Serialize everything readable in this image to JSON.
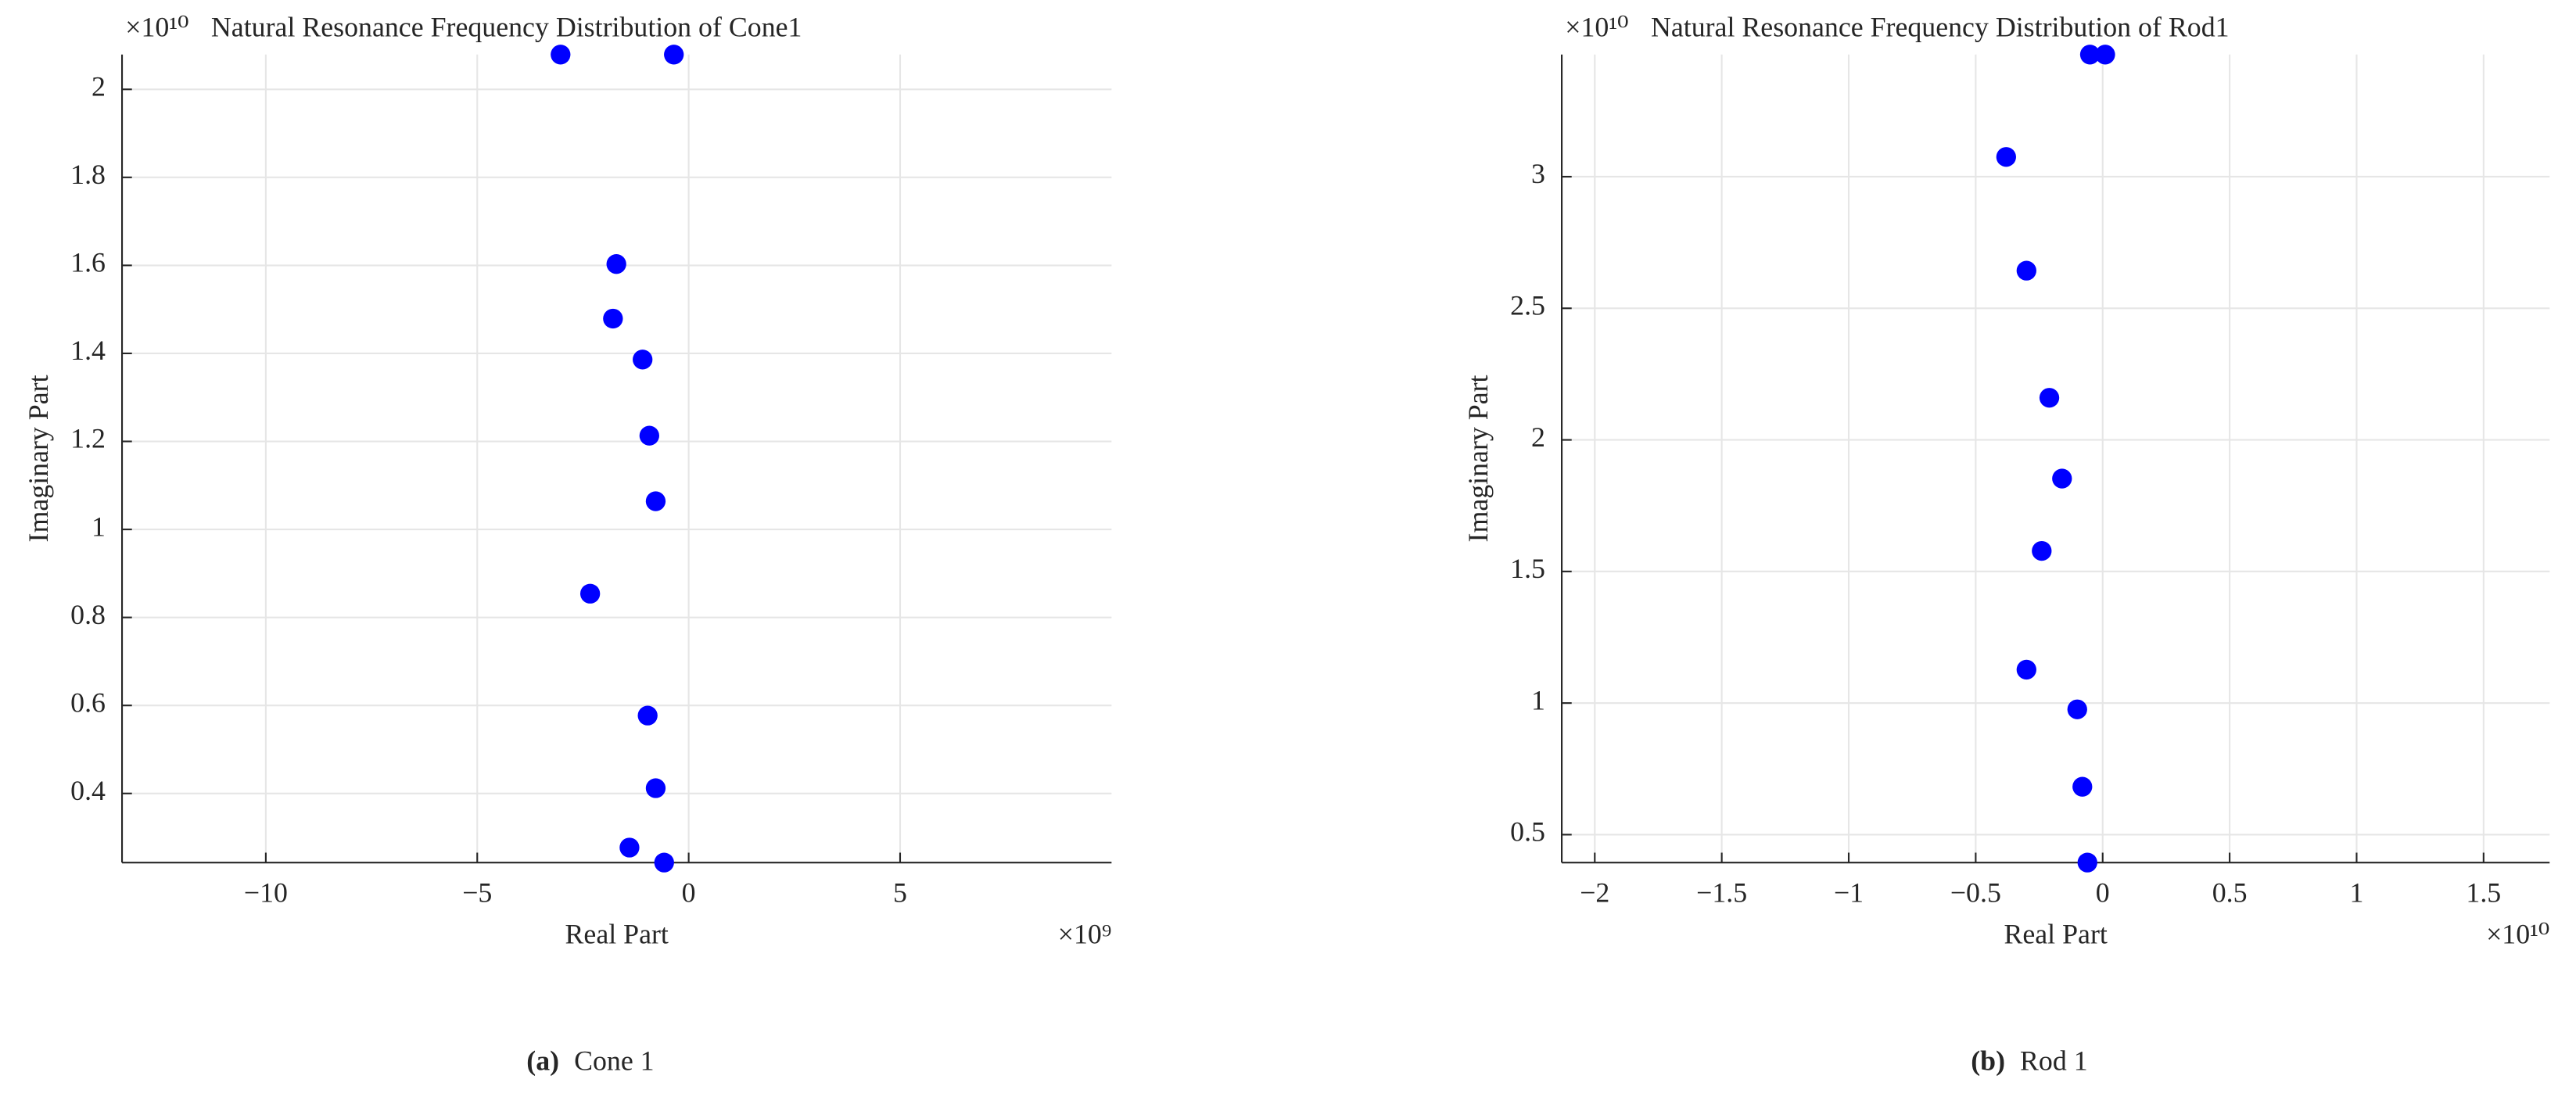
{
  "chart_data": [
    {
      "type": "scatter",
      "title": "Natural Resonance Frequency Distribution of Cone1",
      "xlabel": "Real Part",
      "ylabel": "Imaginary Part",
      "x_multiplier": "×10⁹",
      "y_multiplier": "×10¹⁰",
      "caption_label": "(a)",
      "caption": "Cone 1",
      "color": "#0000ff",
      "grid": true,
      "x": [
        -3.03,
        -0.35,
        -1.71,
        -1.79,
        -1.09,
        -0.93,
        -0.78,
        -2.33,
        -0.97,
        -0.78,
        -1.4,
        -0.58
      ],
      "values": [
        2.079,
        2.079,
        1.603,
        1.479,
        1.386,
        1.213,
        1.064,
        0.854,
        0.577,
        0.412,
        0.277,
        0.243
      ],
      "xlim": [
        -13.4,
        10
      ],
      "ylim": [
        0.243,
        2.079
      ],
      "xticks": [
        {
          "value": -10,
          "label": "−10"
        },
        {
          "value": -5,
          "label": "−5"
        },
        0,
        5
      ],
      "yticks": [
        0.4,
        0.6,
        0.8,
        1,
        1.2,
        1.4,
        1.6,
        1.8,
        2
      ]
    },
    {
      "type": "scatter",
      "title": "Natural Resonance Frequency Distribution of Rod1",
      "xlabel": "Real Part",
      "ylabel": "Imaginary Part",
      "x_multiplier": "×10¹⁰",
      "y_multiplier": "×10¹⁰",
      "caption_label": "(b)",
      "caption": "Rod 1",
      "color": "#0000ff",
      "grid": true,
      "x": [
        -0.05,
        0.01,
        -0.38,
        -0.3,
        -0.21,
        -0.16,
        -0.24,
        -0.3,
        -0.1,
        -0.08,
        -0.06
      ],
      "values": [
        3.464,
        3.464,
        3.075,
        2.643,
        2.16,
        1.853,
        1.578,
        1.127,
        0.976,
        0.682,
        0.394
      ],
      "xlim": [
        -2.13,
        1.76
      ],
      "ylim": [
        0.394,
        3.464
      ],
      "xticks": [
        {
          "value": -2,
          "label": "−2"
        },
        {
          "value": -1.5,
          "label": "−1.5"
        },
        {
          "value": -1,
          "label": "−1"
        },
        {
          "value": -0.5,
          "label": "−0.5"
        },
        0,
        0.5,
        1,
        1.5
      ],
      "yticks": [
        0.5,
        1,
        1.5,
        2,
        2.5,
        3
      ]
    }
  ]
}
